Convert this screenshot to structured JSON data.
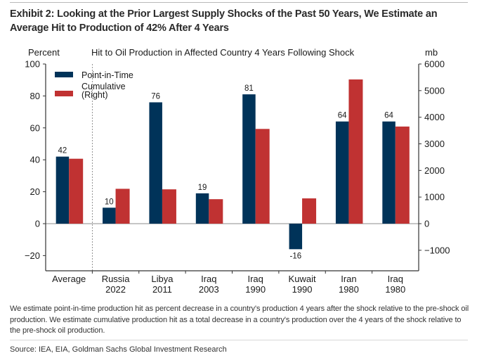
{
  "header": {
    "title": "Exhibit 2: Looking at the Prior Largest Supply Shocks of the Past 50 Years, We Estimate an Average Hit to Production of 42% After 4 Years"
  },
  "footer": {
    "note": "We estimate point-in-time production hit as percent decrease in a country's production 4 years after the shock relative to the pre-shock oil production. We estimate cumulative production hit as a total decrease in a country's production over the 4 years of the shock relative to the pre-shock oil production.",
    "source": "Source: IEA, EIA, Goldman Sachs Global Investment Research"
  },
  "colors": {
    "point_in_time": "#003359",
    "cumulative": "#c03232"
  },
  "chart_data": {
    "type": "bar",
    "title": "Hit to Oil Production in Affected Country 4 Years Following Shock",
    "ylabel": "Percent",
    "ylabel_right": "mb",
    "ylim": [
      -20,
      100
    ],
    "ylim_right": [
      -1000,
      6000
    ],
    "yticks": [
      100,
      80,
      60,
      40,
      20,
      0,
      -20
    ],
    "yticks_labels": [
      "100",
      "80",
      "60",
      "40",
      "20",
      "0",
      "−20"
    ],
    "yticks_right": [
      6000,
      5000,
      4000,
      3000,
      2000,
      1000,
      0,
      -1000
    ],
    "yticks_right_labels": [
      "6000",
      "5000",
      "4000",
      "3000",
      "2000",
      "1000",
      "0",
      "−1000"
    ],
    "categories": [
      [
        "Average"
      ],
      [
        "Russia",
        "2022"
      ],
      [
        "Libya",
        "2011"
      ],
      [
        "Iraq",
        "2003"
      ],
      [
        "Iraq",
        "1990"
      ],
      [
        "Kuwait",
        "1990"
      ],
      [
        "Iran",
        "1980"
      ],
      [
        "Iraq",
        "1980"
      ]
    ],
    "legend_position": "top-left",
    "grid": false,
    "series": [
      {
        "name": "Point-in-Time",
        "axis": "left",
        "values": [
          42,
          10,
          76,
          19,
          81,
          -16,
          64,
          64
        ],
        "labels": [
          "42",
          "10",
          "76",
          "19",
          "81",
          "-16",
          "64",
          "64"
        ]
      },
      {
        "name": "Cumulative\n(Right)",
        "legend_lines": [
          "Cumulative",
          "(Right)"
        ],
        "axis": "right",
        "values": [
          2440,
          1310,
          1290,
          920,
          3560,
          950,
          5420,
          3650
        ]
      }
    ]
  }
}
